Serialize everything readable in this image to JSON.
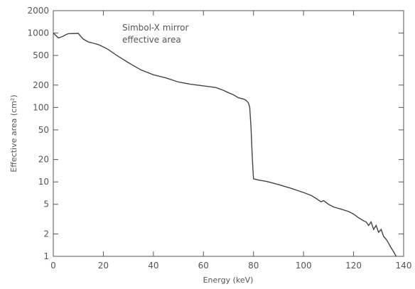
{
  "chart_data": {
    "type": "line",
    "title": "",
    "annotation_lines": [
      "Simbol-X mirror",
      "effective area"
    ],
    "xlabel": "Energy (keV)",
    "ylabel": "Effective area (cm²)",
    "xlim": [
      0,
      140
    ],
    "ylim": [
      1,
      2000
    ],
    "y_scale": "log",
    "grid": false,
    "legend": "none",
    "x_ticks": [
      0,
      20,
      40,
      60,
      80,
      100,
      120,
      140
    ],
    "y_ticks": [
      1,
      2,
      5,
      10,
      20,
      50,
      100,
      200,
      500,
      1000,
      2000
    ],
    "series": [
      {
        "color": "#444444",
        "x": [
          0,
          1,
          2,
          3,
          4,
          5,
          6,
          8,
          10,
          11,
          12,
          14,
          16,
          18,
          20,
          22,
          25,
          30,
          35,
          40,
          45,
          50,
          55,
          60,
          65,
          68,
          70,
          72,
          74,
          76,
          77,
          78,
          78.5,
          79,
          79.5,
          80,
          81,
          82,
          85,
          88,
          90,
          95,
          100,
          103,
          105,
          107,
          108,
          110,
          112,
          115,
          118,
          120,
          122,
          124,
          125,
          126,
          127,
          128,
          129,
          130,
          131,
          132,
          133,
          134,
          135,
          136,
          137
        ],
        "y": [
          1000,
          930,
          860,
          880,
          910,
          950,
          980,
          985,
          990,
          900,
          830,
          760,
          730,
          700,
          650,
          600,
          510,
          400,
          320,
          275,
          250,
          220,
          205,
          195,
          185,
          170,
          158,
          148,
          135,
          130,
          125,
          115,
          100,
          55,
          22,
          11,
          10.8,
          10.6,
          10.2,
          9.6,
          9.2,
          8.2,
          7.2,
          6.6,
          6.0,
          5.4,
          5.6,
          5.0,
          4.6,
          4.3,
          4.0,
          3.7,
          3.3,
          3.0,
          2.9,
          2.6,
          2.9,
          2.3,
          2.6,
          2.1,
          2.3,
          1.85,
          1.7,
          1.5,
          1.3,
          1.15,
          1.0
        ]
      }
    ]
  }
}
